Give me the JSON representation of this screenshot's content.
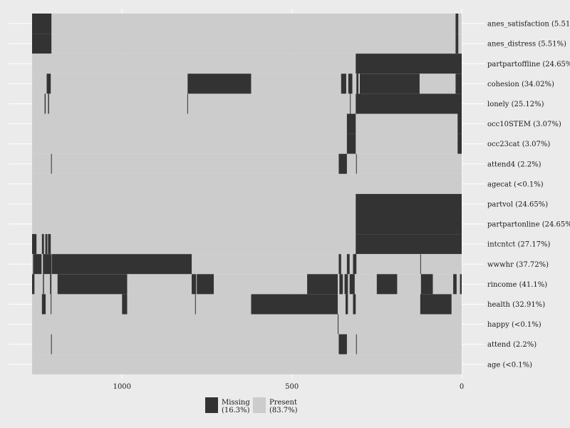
{
  "chart_data": {
    "type": "heatmap",
    "title": "",
    "xlabel": "",
    "ylabel": "",
    "x_reversed": true,
    "xlim": [
      0,
      1265
    ],
    "x_ticks": [
      {
        "value": 1000,
        "label": "1000"
      },
      {
        "value": 500,
        "label": "500"
      },
      {
        "value": 0,
        "label": "0"
      }
    ],
    "colors": {
      "missing": "#333333",
      "present": "#cccccc",
      "background": "#ebebeb",
      "grid": "#ffffff"
    },
    "rows": [
      {
        "name": "anes_satisfaction",
        "label": "anes_satisfaction (5.51%)",
        "missing": [
          [
            1208,
            1265
          ],
          [
            10,
            18
          ]
        ]
      },
      {
        "name": "anes_distress",
        "label": "anes_distress (5.51%)",
        "missing": [
          [
            1208,
            1265
          ],
          [
            10,
            18
          ]
        ]
      },
      {
        "name": "partpartoffline",
        "label": "partpartoffline (24.65%)",
        "missing": [
          [
            0,
            312
          ]
        ]
      },
      {
        "name": "cohesion",
        "label": "cohesion (34.02%)",
        "missing": [
          [
            1210,
            1222
          ],
          [
            620,
            807
          ],
          [
            340,
            355
          ],
          [
            322,
            334
          ],
          [
            304,
            310
          ],
          [
            124,
            300
          ],
          [
            0,
            18
          ]
        ]
      },
      {
        "name": "lonely",
        "label": "lonely (25.12%)",
        "missing": [
          [
            1225,
            1228
          ],
          [
            1215,
            1218
          ],
          [
            806,
            808
          ],
          [
            327,
            329
          ],
          [
            0,
            312
          ]
        ]
      },
      {
        "name": "occ10STEM",
        "label": "occ10STEM (3.07%)",
        "missing": [
          [
            312,
            338
          ],
          [
            0,
            12
          ]
        ]
      },
      {
        "name": "occ23cat",
        "label": "occ23cat (3.07%)",
        "missing": [
          [
            312,
            338
          ],
          [
            0,
            12
          ]
        ]
      },
      {
        "name": "attend4",
        "label": "attend4 (2.2%)",
        "missing": [
          [
            1207,
            1209
          ],
          [
            338,
            362
          ],
          [
            309,
            311
          ]
        ]
      },
      {
        "name": "agecat",
        "label": "agecat (<0.1%)",
        "missing": []
      },
      {
        "name": "partvol",
        "label": "partvol (24.65%)",
        "missing": [
          [
            0,
            312
          ]
        ]
      },
      {
        "name": "partpartonline",
        "label": "partpartonline (24.65%)",
        "missing": [
          [
            0,
            312
          ]
        ]
      },
      {
        "name": "intcntct",
        "label": "intcntct (27.17%)",
        "missing": [
          [
            1252,
            1265
          ],
          [
            1230,
            1236
          ],
          [
            1220,
            1226
          ],
          [
            1210,
            1218
          ],
          [
            0,
            312
          ]
        ]
      },
      {
        "name": "wwwhr",
        "label": "wwwhr (37.72%)",
        "missing": [
          [
            1237,
            1262
          ],
          [
            1208,
            1233
          ],
          [
            795,
            1207
          ],
          [
            355,
            362
          ],
          [
            330,
            338
          ],
          [
            310,
            320
          ],
          [
            120,
            122
          ]
        ]
      },
      {
        "name": "rincome",
        "label": "rincome (41.1%)",
        "missing": [
          [
            1258,
            1265
          ],
          [
            1230,
            1233
          ],
          [
            1208,
            1212
          ],
          [
            985,
            1190
          ],
          [
            782,
            795
          ],
          [
            730,
            780
          ],
          [
            365,
            455
          ],
          [
            350,
            360
          ],
          [
            335,
            345
          ],
          [
            315,
            330
          ],
          [
            190,
            250
          ],
          [
            85,
            120
          ],
          [
            15,
            25
          ],
          [
            0,
            5
          ]
        ]
      },
      {
        "name": "health",
        "label": "health (32.91%)",
        "missing": [
          [
            1225,
            1236
          ],
          [
            1208,
            1210
          ],
          [
            985,
            1000
          ],
          [
            783,
            785
          ],
          [
            365,
            620
          ],
          [
            335,
            342
          ],
          [
            312,
            320
          ],
          [
            30,
            122
          ]
        ]
      },
      {
        "name": "happy",
        "label": "happy (<0.1%)",
        "missing": [
          [
            363,
            365
          ]
        ]
      },
      {
        "name": "attend",
        "label": "attend (2.2%)",
        "missing": [
          [
            1207,
            1209
          ],
          [
            338,
            362
          ],
          [
            309,
            311
          ]
        ]
      },
      {
        "name": "age",
        "label": "age (<0.1%)",
        "missing": []
      }
    ],
    "legend": {
      "position": "bottom",
      "items": [
        {
          "key": "missing",
          "line1": "Missing",
          "line2": "(16.3%)"
        },
        {
          "key": "present",
          "line1": "Present",
          "line2": "(83.7%)"
        }
      ]
    }
  }
}
